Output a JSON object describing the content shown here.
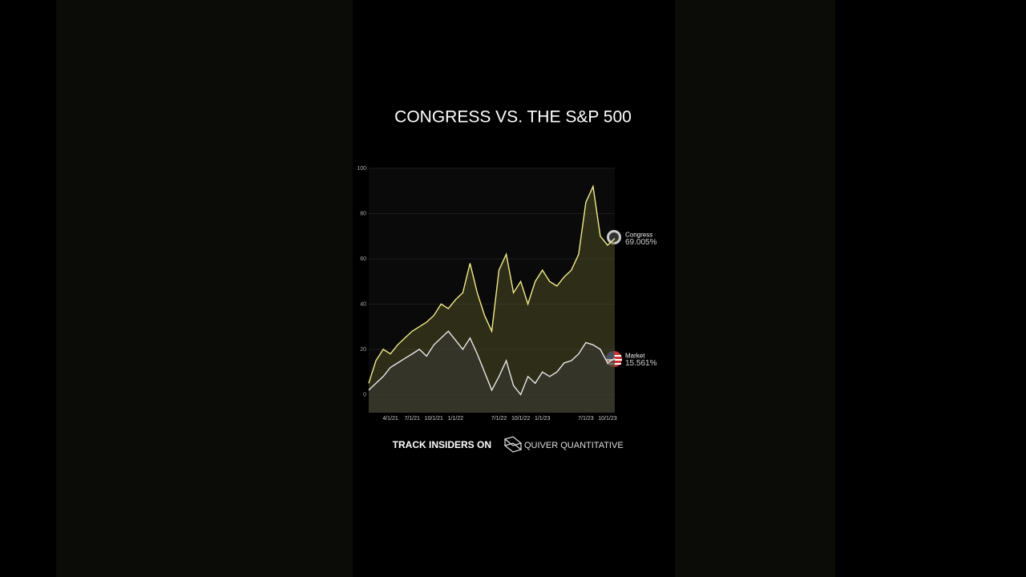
{
  "chart_data": {
    "type": "line",
    "title": "CONGRESS VS. THE S&P 500",
    "footer": "TRACK INSIDERS ON",
    "brand": "QUIVER QUANTITATIVE",
    "x": [
      "1/1/21",
      "2/1/21",
      "3/1/21",
      "4/1/21",
      "5/1/21",
      "6/1/21",
      "7/1/21",
      "8/1/21",
      "9/1/21",
      "10/1/21",
      "11/1/21",
      "12/1/21",
      "1/1/22",
      "2/1/22",
      "3/1/22",
      "4/1/22",
      "5/1/22",
      "6/1/22",
      "7/1/22",
      "8/1/22",
      "9/1/22",
      "10/1/22",
      "11/1/22",
      "12/1/22",
      "1/1/23",
      "2/1/23",
      "3/1/23",
      "4/1/23",
      "5/1/23",
      "6/1/23",
      "7/1/23",
      "8/1/23",
      "9/1/23",
      "10/1/23",
      "11/1/23"
    ],
    "xticks": [
      "4/1/21",
      "7/1/21",
      "10/1/21",
      "1/1/22",
      "7/1/22",
      "10/1/22",
      "1/1/23",
      "7/1/23",
      "10/1/23"
    ],
    "ylim": [
      -8,
      100
    ],
    "yticks": [
      0,
      20,
      40,
      60,
      80,
      100
    ],
    "grid": true,
    "series": [
      {
        "name": "Congress",
        "color": "#f2ec8a",
        "fill": "rgba(90,88,40,0.45)",
        "end_value": 69.005,
        "end_label": "69.005%",
        "values": [
          5,
          15,
          20,
          18,
          22,
          25,
          28,
          30,
          32,
          35,
          40,
          38,
          42,
          45,
          58,
          45,
          35,
          28,
          55,
          62,
          45,
          50,
          40,
          50,
          55,
          50,
          48,
          52,
          55,
          62,
          85,
          92,
          70,
          66,
          69
        ]
      },
      {
        "name": "Market",
        "color": "#e8e8e8",
        "fill": "rgba(60,60,60,0.5)",
        "end_value": 15.561,
        "end_label": "15.561%",
        "values": [
          2,
          5,
          8,
          12,
          14,
          16,
          18,
          20,
          17,
          22,
          25,
          28,
          24,
          20,
          25,
          18,
          10,
          2,
          8,
          15,
          4,
          0,
          8,
          5,
          10,
          8,
          10,
          14,
          15,
          18,
          23,
          22,
          20,
          14,
          16
        ]
      }
    ]
  }
}
